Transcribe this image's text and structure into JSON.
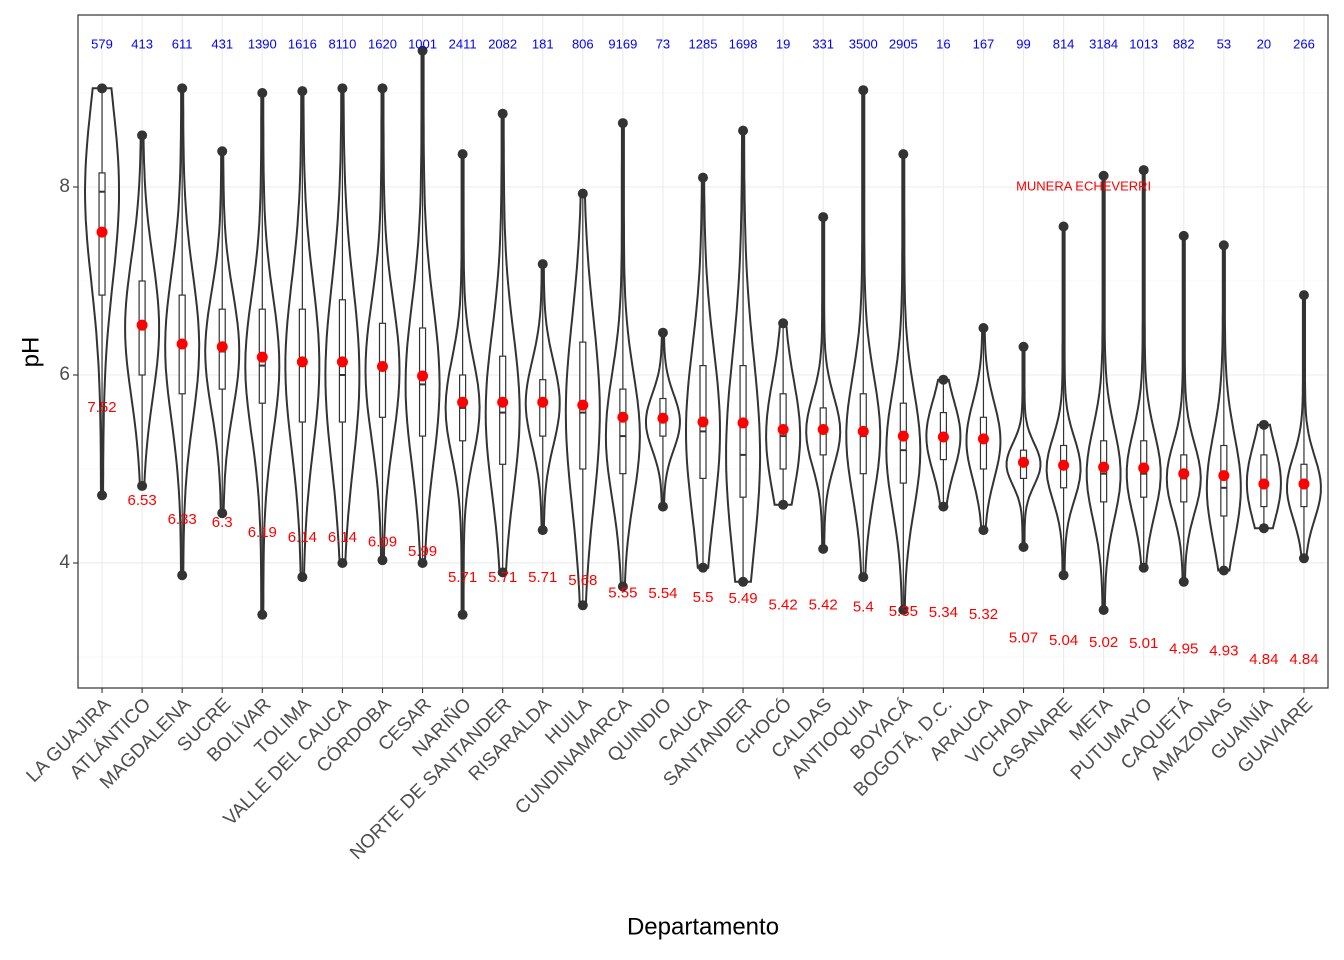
{
  "chart_data": {
    "type": "violin",
    "x_label": "Departamento",
    "y_label": "pH",
    "annotation": {
      "text": "MUNERA ECHEVERRI",
      "x": 24.5,
      "y": 8.0
    },
    "categories": [
      "LA GUAJIRA",
      "ATLÁNTICO",
      "MAGDALENA",
      "SUCRE",
      "BOLÍVAR",
      "TOLIMA",
      "VALLE DEL CAUCA",
      "CÓRDOBA",
      "CESAR",
      "NARIÑO",
      "NORTE DE SANTANDER",
      "RISARALDA",
      "HUILA",
      "CUNDINAMARCA",
      "QUINDIO",
      "CAUCA",
      "SANTANDER",
      "CHOCÓ",
      "CALDAS",
      "ANTIOQUIA",
      "BOYACÁ",
      "BOGOTÁ, D.C.",
      "ARAUCA",
      "VICHADA",
      "CASANARE",
      "META",
      "PUTUMAYO",
      "CAQUETÁ",
      "AMAZONAS",
      "GUAINÍA",
      "GUAVIARE"
    ],
    "counts": [
      579,
      413,
      611,
      431,
      1390,
      1616,
      8110,
      1620,
      1001,
      2411,
      2082,
      181,
      806,
      9169,
      73,
      1285,
      1698,
      19,
      331,
      3500,
      2905,
      16,
      167,
      99,
      814,
      3184,
      1013,
      882,
      53,
      20,
      266
    ],
    "means": [
      7.52,
      6.53,
      6.33,
      6.3,
      6.19,
      6.14,
      6.14,
      6.09,
      5.99,
      5.71,
      5.71,
      5.71,
      5.68,
      5.55,
      5.54,
      5.5,
      5.49,
      5.42,
      5.42,
      5.4,
      5.35,
      5.34,
      5.32,
      5.07,
      5.04,
      5.02,
      5.01,
      4.95,
      4.93,
      4.84,
      4.84
    ],
    "min": [
      4.72,
      4.82,
      3.87,
      4.53,
      3.45,
      3.85,
      4.0,
      4.03,
      4.0,
      3.45,
      3.9,
      4.35,
      3.55,
      3.75,
      4.6,
      3.95,
      3.8,
      4.62,
      4.15,
      3.85,
      3.5,
      4.6,
      4.35,
      4.17,
      3.87,
      3.5,
      3.95,
      3.8,
      3.92,
      4.37,
      4.05
    ],
    "q1": [
      6.85,
      6.0,
      5.8,
      5.85,
      5.7,
      5.5,
      5.5,
      5.55,
      5.35,
      5.3,
      5.05,
      5.35,
      5.0,
      4.95,
      5.35,
      4.9,
      4.7,
      5.0,
      5.15,
      4.95,
      4.85,
      5.1,
      5.0,
      4.9,
      4.8,
      4.65,
      4.7,
      4.65,
      4.5,
      4.6,
      4.6
    ],
    "median": [
      7.95,
      6.5,
      6.3,
      6.25,
      6.1,
      6.1,
      6.0,
      6.05,
      5.9,
      5.65,
      5.6,
      5.7,
      5.6,
      5.35,
      5.5,
      5.4,
      5.15,
      5.35,
      5.4,
      5.35,
      5.2,
      5.35,
      5.3,
      5.05,
      5.0,
      4.95,
      4.95,
      4.9,
      4.8,
      4.85,
      4.8
    ],
    "q3": [
      8.15,
      7.0,
      6.85,
      6.7,
      6.7,
      6.7,
      6.8,
      6.55,
      6.5,
      6.0,
      6.2,
      5.95,
      6.35,
      5.85,
      5.75,
      6.1,
      6.1,
      5.8,
      5.65,
      5.8,
      5.7,
      5.6,
      5.55,
      5.2,
      5.25,
      5.3,
      5.3,
      5.15,
      5.25,
      5.15,
      5.05
    ],
    "max": [
      9.05,
      8.55,
      9.05,
      8.38,
      9.0,
      9.02,
      9.05,
      9.05,
      9.45,
      8.35,
      8.78,
      7.18,
      7.93,
      8.68,
      6.45,
      8.1,
      8.6,
      6.55,
      7.68,
      9.03,
      8.35,
      5.95,
      6.5,
      6.3,
      7.58,
      8.12,
      8.18,
      7.48,
      7.38,
      5.47,
      6.85
    ],
    "count_color": "#0000ff",
    "mean_color": "#ff0000",
    "violin_color": "#333333",
    "ylim": [
      2.67,
      9.83
    ],
    "yticks": [
      4,
      6,
      8
    ],
    "yminor": [
      3,
      5,
      7,
      9
    ],
    "grid": true
  }
}
